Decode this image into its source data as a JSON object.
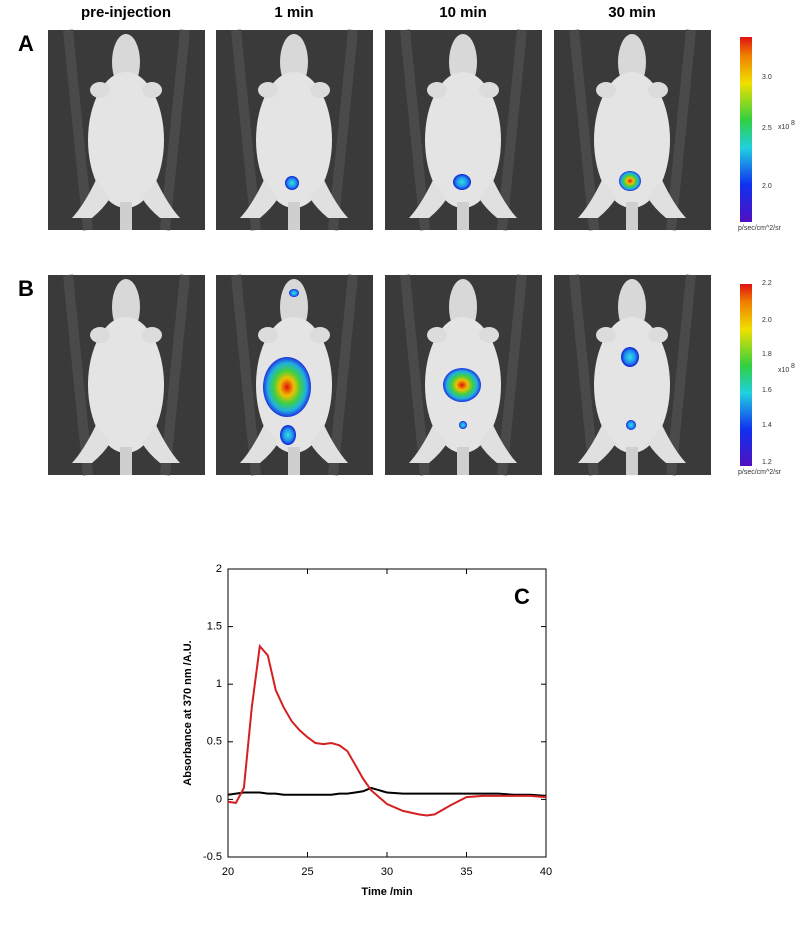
{
  "panels": {
    "label_a": "A",
    "label_b": "B",
    "columns": [
      "pre-injection",
      "1 min",
      "10 min",
      "30 min"
    ],
    "colorbars": [
      {
        "ticks": [
          "3.0",
          "2.5",
          "2.0"
        ],
        "exponent": "x10",
        "exponent_power": "8",
        "unit": "p/sec/cm^2/sr"
      },
      {
        "ticks": [
          "2.2",
          "2.0",
          "1.8",
          "1.6",
          "1.4",
          "1.2"
        ],
        "exponent": "x10",
        "exponent_power": "8",
        "unit": "p/sec/cm^2/sr"
      }
    ]
  },
  "chart_data": {
    "type": "line",
    "annotation": "C",
    "x_label": "Time /min",
    "y_label": "Absorbance at 370 nm /A.U.",
    "x": [
      20,
      20.5,
      21,
      21.5,
      22,
      22.5,
      23,
      23.5,
      24,
      24.5,
      25,
      25.5,
      26,
      26.5,
      27,
      27.5,
      28,
      28.5,
      29,
      29.5,
      30,
      31,
      32,
      32.5,
      33,
      34,
      35,
      36,
      37,
      38,
      39,
      40
    ],
    "series": [
      {
        "color": "#d42020",
        "values": [
          -0.02,
          -0.03,
          0.1,
          0.8,
          1.33,
          1.25,
          0.95,
          0.8,
          0.68,
          0.6,
          0.54,
          0.49,
          0.48,
          0.49,
          0.47,
          0.42,
          0.3,
          0.18,
          0.08,
          0.02,
          -0.04,
          -0.1,
          -0.13,
          -0.14,
          -0.13,
          -0.05,
          0.02,
          0.03,
          0.03,
          0.03,
          0.03,
          0.02
        ]
      },
      {
        "color": "#000000",
        "values": [
          0.04,
          0.05,
          0.06,
          0.06,
          0.06,
          0.05,
          0.05,
          0.04,
          0.04,
          0.04,
          0.04,
          0.04,
          0.04,
          0.04,
          0.05,
          0.05,
          0.06,
          0.07,
          0.1,
          0.08,
          0.06,
          0.05,
          0.05,
          0.05,
          0.05,
          0.05,
          0.05,
          0.05,
          0.05,
          0.04,
          0.04,
          0.03
        ]
      }
    ],
    "xlim": [
      20,
      40
    ],
    "xticks": [
      20,
      25,
      30,
      35,
      40
    ],
    "ylim": [
      -0.5,
      2
    ],
    "yticks": [
      -0.5,
      0,
      0.5,
      1,
      1.5,
      2
    ]
  }
}
